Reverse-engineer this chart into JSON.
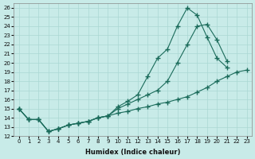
{
  "xlabel": "Humidex (Indice chaleur)",
  "xlim": [
    -0.5,
    23.5
  ],
  "ylim": [
    12,
    26.5
  ],
  "yticks": [
    12,
    13,
    14,
    15,
    16,
    17,
    18,
    19,
    20,
    21,
    22,
    23,
    24,
    25,
    26
  ],
  "xticks": [
    0,
    1,
    2,
    3,
    4,
    5,
    6,
    7,
    8,
    9,
    10,
    11,
    12,
    13,
    14,
    15,
    16,
    17,
    18,
    19,
    20,
    21,
    22,
    23
  ],
  "bg_color": "#c8ebe8",
  "line_color": "#1a6b5a",
  "grid_color": "#aad8d3",
  "line1_x": [
    0,
    1,
    2,
    3,
    4,
    5,
    6,
    7,
    8,
    9,
    10,
    11,
    12,
    13,
    14,
    15,
    16,
    17,
    18,
    19,
    20,
    21,
    22,
    23
  ],
  "line1_y": [
    15.0,
    13.8,
    13.8,
    12.5,
    12.8,
    13.2,
    13.4,
    13.6,
    14.0,
    14.2,
    14.5,
    14.7,
    15.0,
    15.2,
    15.5,
    15.7,
    16.0,
    16.3,
    16.8,
    17.3,
    18.0,
    18.5,
    19.0,
    19.2
  ],
  "line2_x": [
    0,
    1,
    2,
    3,
    4,
    5,
    6,
    7,
    8,
    9,
    10,
    11,
    12,
    13,
    14,
    15,
    16,
    17,
    18,
    19,
    20,
    21
  ],
  "line2_y": [
    15.0,
    13.8,
    13.8,
    12.5,
    12.8,
    13.2,
    13.4,
    13.6,
    14.0,
    14.2,
    15.0,
    15.5,
    16.0,
    16.5,
    17.0,
    18.0,
    20.0,
    22.0,
    24.0,
    24.2,
    22.5,
    20.2
  ],
  "line3_x": [
    0,
    1,
    2,
    3,
    4,
    5,
    6,
    7,
    8,
    9,
    10,
    11,
    12,
    13,
    14,
    15,
    16,
    17,
    18,
    19,
    20,
    21
  ],
  "line3_y": [
    15.0,
    13.8,
    13.8,
    12.5,
    12.8,
    13.2,
    13.4,
    13.6,
    14.0,
    14.2,
    15.2,
    15.8,
    16.5,
    18.5,
    20.5,
    21.5,
    24.0,
    26.0,
    25.2,
    22.8,
    20.5,
    19.5
  ]
}
